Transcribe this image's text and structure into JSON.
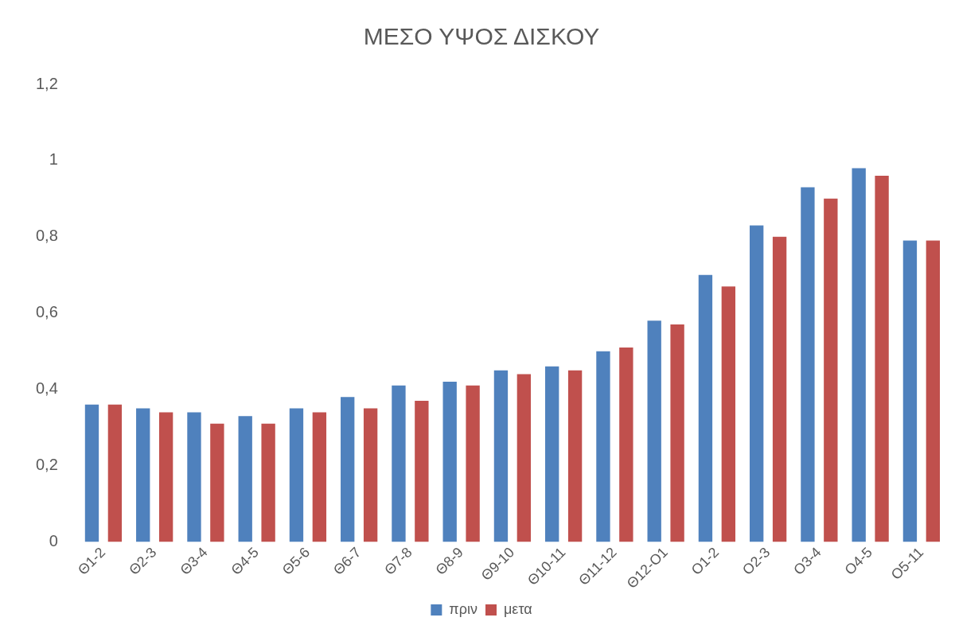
{
  "chart_data": {
    "type": "bar",
    "title": "ΜΕΣΟ ΥΨΟΣ ΔΙΣΚΟΥ",
    "categories": [
      "Θ1-2",
      "Θ2-3",
      "Θ3-4",
      "Θ4-5",
      "Θ5-6",
      "Θ6-7",
      "Θ7-8",
      "Θ8-9",
      "Θ9-10",
      "Θ10-11",
      "Θ11-12",
      "Θ12-Ο1",
      "Ο1-2",
      "Ο2-3",
      "Ο3-4",
      "Ο4-5",
      "Ο5-11"
    ],
    "series": [
      {
        "name": "πριν",
        "color": "#4f81bd",
        "values": [
          0.36,
          0.35,
          0.34,
          0.33,
          0.35,
          0.38,
          0.41,
          0.42,
          0.45,
          0.46,
          0.5,
          0.58,
          0.7,
          0.83,
          0.93,
          0.98,
          0.79
        ]
      },
      {
        "name": "μετα",
        "color": "#c0504d",
        "values": [
          0.36,
          0.34,
          0.31,
          0.31,
          0.34,
          0.35,
          0.37,
          0.41,
          0.44,
          0.45,
          0.51,
          0.57,
          0.67,
          0.8,
          0.9,
          0.96,
          0.79
        ]
      }
    ],
    "ylim": [
      0,
      1.2
    ],
    "yticks": [
      {
        "value": 0,
        "label": "0"
      },
      {
        "value": 0.2,
        "label": "0,2"
      },
      {
        "value": 0.4,
        "label": "0,4"
      },
      {
        "value": 0.6,
        "label": "0,6"
      },
      {
        "value": 0.8,
        "label": "0,8"
      },
      {
        "value": 1,
        "label": "1"
      },
      {
        "value": 1.2,
        "label": "1,2"
      }
    ],
    "grid": false,
    "legend": "bottom"
  }
}
